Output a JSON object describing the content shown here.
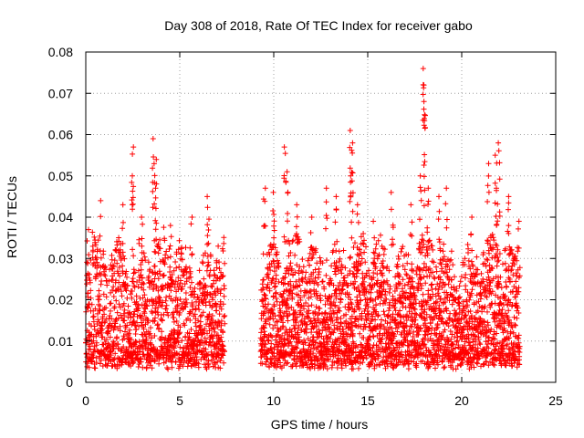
{
  "chart_data": {
    "type": "scatter",
    "title": "Day 308 of 2018, Rate Of TEC Index for receiver gabo",
    "xlabel": "GPS time / hours",
    "ylabel": "ROTI / TECUs",
    "xlim": [
      0,
      25
    ],
    "ylim": [
      0,
      0.08
    ],
    "x_ticks": [
      0,
      5,
      10,
      15,
      20,
      25
    ],
    "x_tick_labels": [
      "0",
      "5",
      "10",
      "15",
      "20",
      "25"
    ],
    "y_ticks": [
      0,
      0.01,
      0.02,
      0.03,
      0.04,
      0.05,
      0.06,
      0.07,
      0.08
    ],
    "y_tick_labels": [
      "0",
      "0.01",
      "0.02",
      "0.03",
      "0.04",
      "0.05",
      "0.06",
      "0.07",
      "0.08"
    ],
    "grid": true,
    "marker": "+",
    "color": "#ff0000",
    "segments": [
      {
        "x_start": 0.0,
        "x_end": 7.4,
        "density": 180
      },
      {
        "x_start": 9.3,
        "x_end": 23.1,
        "density": 200
      }
    ],
    "peaks": [
      {
        "x": 0.1,
        "y": 0.037
      },
      {
        "x": 0.8,
        "y": 0.044
      },
      {
        "x": 2.0,
        "y": 0.043
      },
      {
        "x": 2.5,
        "y": 0.057
      },
      {
        "x": 2.5,
        "y": 0.05
      },
      {
        "x": 3.0,
        "y": 0.04
      },
      {
        "x": 3.6,
        "y": 0.059
      },
      {
        "x": 3.7,
        "y": 0.054
      },
      {
        "x": 3.7,
        "y": 0.047
      },
      {
        "x": 4.5,
        "y": 0.038
      },
      {
        "x": 5.6,
        "y": 0.04
      },
      {
        "x": 6.5,
        "y": 0.045
      },
      {
        "x": 7.0,
        "y": 0.033
      },
      {
        "x": 9.5,
        "y": 0.047
      },
      {
        "x": 10.0,
        "y": 0.046
      },
      {
        "x": 10.6,
        "y": 0.057
      },
      {
        "x": 10.7,
        "y": 0.051
      },
      {
        "x": 11.2,
        "y": 0.043
      },
      {
        "x": 12.0,
        "y": 0.04
      },
      {
        "x": 12.8,
        "y": 0.047
      },
      {
        "x": 13.3,
        "y": 0.045
      },
      {
        "x": 14.1,
        "y": 0.061
      },
      {
        "x": 14.2,
        "y": 0.058
      },
      {
        "x": 14.1,
        "y": 0.05
      },
      {
        "x": 14.5,
        "y": 0.043
      },
      {
        "x": 15.3,
        "y": 0.039
      },
      {
        "x": 16.3,
        "y": 0.046
      },
      {
        "x": 17.3,
        "y": 0.043
      },
      {
        "x": 17.8,
        "y": 0.05
      },
      {
        "x": 18.0,
        "y": 0.076
      },
      {
        "x": 18.0,
        "y": 0.072
      },
      {
        "x": 18.0,
        "y": 0.068
      },
      {
        "x": 18.2,
        "y": 0.047
      },
      {
        "x": 18.8,
        "y": 0.045
      },
      {
        "x": 19.2,
        "y": 0.047
      },
      {
        "x": 20.5,
        "y": 0.04
      },
      {
        "x": 21.4,
        "y": 0.053
      },
      {
        "x": 21.8,
        "y": 0.055
      },
      {
        "x": 22.0,
        "y": 0.058
      },
      {
        "x": 21.9,
        "y": 0.047
      },
      {
        "x": 22.5,
        "y": 0.045
      },
      {
        "x": 23.0,
        "y": 0.039
      }
    ]
  }
}
